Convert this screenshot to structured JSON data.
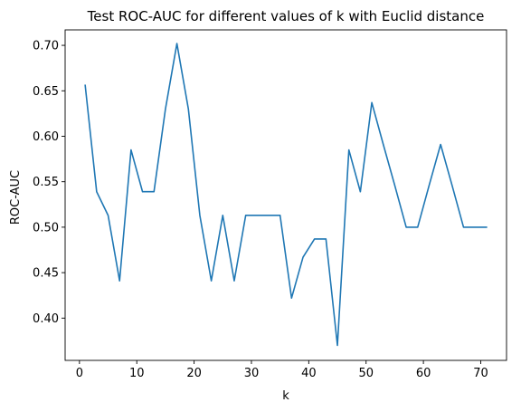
{
  "chart_data": {
    "type": "line",
    "title": "Test ROC-AUC for different values of k with Euclid distance",
    "xlabel": "k",
    "ylabel": "ROC-AUC",
    "xlim": [
      -2.5,
      74.5
    ],
    "ylim": [
      0.3535,
      0.717
    ],
    "xticks": [
      0,
      10,
      20,
      30,
      40,
      50,
      60,
      70
    ],
    "xtick_labels": [
      "0",
      "10",
      "20",
      "30",
      "40",
      "50",
      "60",
      "70"
    ],
    "yticks": [
      0.4,
      0.45,
      0.5,
      0.55,
      0.6,
      0.65,
      0.7
    ],
    "ytick_labels": [
      "0.40",
      "0.45",
      "0.50",
      "0.55",
      "0.60",
      "0.65",
      "0.70"
    ],
    "grid": false,
    "legend": false,
    "line_color": "#1f77b4",
    "series": [
      {
        "x": [
          1,
          3,
          5,
          7,
          9,
          11,
          13,
          15,
          17,
          19,
          21,
          23,
          25,
          27,
          29,
          31,
          33,
          35,
          37,
          39,
          41,
          43,
          45,
          47,
          49,
          51,
          53,
          55,
          57,
          59,
          61,
          63,
          65,
          67,
          69,
          71
        ],
        "y": [
          0.656,
          0.539,
          0.513,
          0.441,
          0.585,
          0.539,
          0.539,
          0.63,
          0.702,
          0.63,
          0.513,
          0.441,
          0.513,
          0.441,
          0.513,
          0.513,
          0.513,
          0.513,
          0.422,
          0.467,
          0.487,
          0.487,
          0.37,
          0.585,
          0.539,
          0.637,
          0.591,
          0.546,
          0.5,
          0.5,
          0.546,
          0.591,
          0.546,
          0.5,
          0.5,
          0.5
        ]
      }
    ]
  }
}
